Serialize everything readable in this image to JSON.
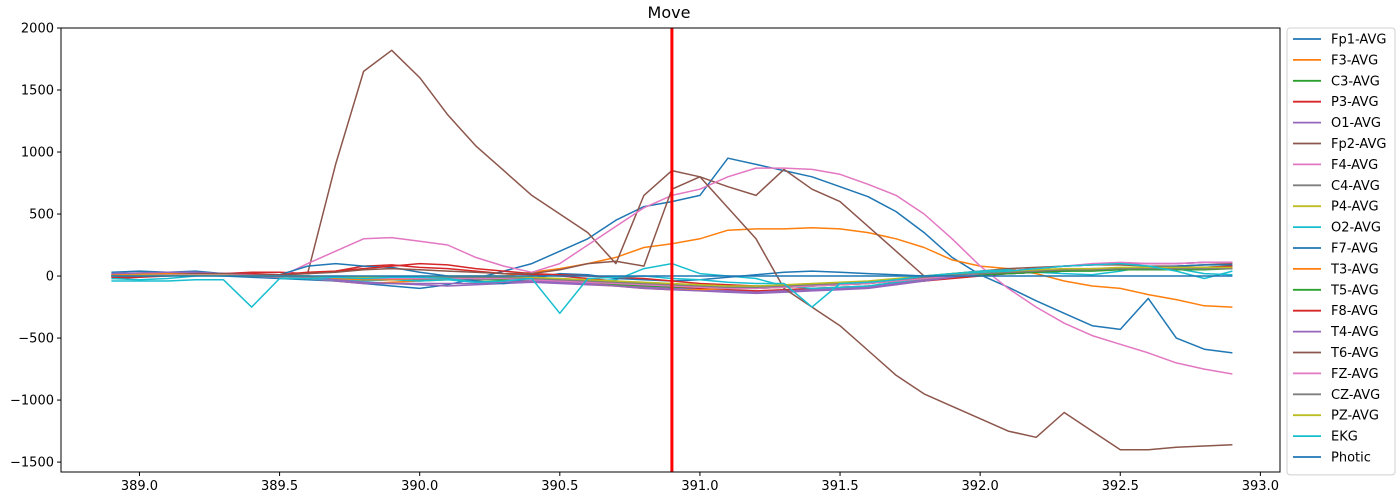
{
  "chart_data": {
    "type": "line",
    "title": "Move",
    "xlabel": "",
    "ylabel": "",
    "xlim": [
      388.72,
      393.07
    ],
    "ylim": [
      -1580,
      2000
    ],
    "x_ticks": [
      389.0,
      389.5,
      390.0,
      390.5,
      391.0,
      391.5,
      392.0,
      392.5,
      393.0
    ],
    "x_tick_labels": [
      "389.0",
      "389.5",
      "390.0",
      "390.5",
      "391.0",
      "391.5",
      "392.0",
      "392.5",
      "393.0"
    ],
    "y_ticks": [
      2000,
      1500,
      1000,
      500,
      0,
      -500,
      -1000,
      -1500
    ],
    "y_tick_labels": [
      "2000",
      "1500",
      "1000",
      "500",
      "0",
      "−500",
      "−1000",
      "−1500"
    ],
    "grid": false,
    "legend_position": "outside-right",
    "x_start": 388.9,
    "x_step": 0.1,
    "event_marker": {
      "x": 390.9,
      "color": "#ff0000"
    },
    "series": [
      {
        "name": "Fp1-AVG",
        "color": "#1f77b4",
        "values": [
          10,
          15,
          10,
          5,
          0,
          -10,
          -20,
          -30,
          -40,
          -60,
          -80,
          -100,
          -70,
          -20,
          40,
          100,
          200,
          300,
          450,
          560,
          600,
          650,
          950,
          900,
          850,
          800,
          720,
          640,
          520,
          350,
          150,
          10,
          -90,
          -200,
          -300,
          -400,
          -430,
          -180,
          -500,
          -590,
          -620
        ]
      },
      {
        "name": "F3-AVG",
        "color": "#ff7f0e",
        "values": [
          10,
          10,
          15,
          15,
          10,
          5,
          0,
          -20,
          -40,
          -60,
          -50,
          -40,
          -30,
          -20,
          0,
          30,
          60,
          100,
          150,
          230,
          260,
          300,
          370,
          380,
          380,
          390,
          380,
          350,
          300,
          230,
          130,
          80,
          60,
          20,
          -40,
          -80,
          -100,
          -150,
          -190,
          -240,
          -250
        ]
      },
      {
        "name": "C3-AVG",
        "color": "#2ca02c",
        "values": [
          0,
          5,
          10,
          10,
          10,
          5,
          0,
          0,
          -20,
          -20,
          -10,
          -20,
          -20,
          -30,
          -30,
          -40,
          -50,
          -60,
          -70,
          -80,
          -90,
          -100,
          -120,
          -130,
          -120,
          -110,
          -100,
          -90,
          -60,
          -40,
          -10,
          10,
          20,
          30,
          40,
          50,
          60,
          60,
          70,
          70,
          80
        ]
      },
      {
        "name": "P3-AVG",
        "color": "#d62728",
        "values": [
          -20,
          -10,
          0,
          10,
          20,
          30,
          30,
          20,
          40,
          80,
          90,
          70,
          60,
          40,
          20,
          10,
          0,
          -20,
          -40,
          -60,
          -80,
          -100,
          -110,
          -120,
          -110,
          -100,
          -90,
          -80,
          -60,
          -40,
          -20,
          0,
          20,
          30,
          40,
          50,
          60,
          60,
          70,
          70,
          70
        ]
      },
      {
        "name": "O1-AVG",
        "color": "#9467bd",
        "values": [
          20,
          20,
          30,
          30,
          20,
          20,
          10,
          -20,
          -40,
          -60,
          -60,
          -70,
          -80,
          -70,
          -60,
          -50,
          -60,
          -70,
          -80,
          -90,
          -100,
          -110,
          -120,
          -130,
          -120,
          -110,
          -100,
          -90,
          -60,
          -30,
          0,
          20,
          40,
          60,
          80,
          90,
          100,
          100,
          100,
          110,
          110
        ]
      },
      {
        "name": "Fp2-AVG",
        "color": "#8c564b",
        "values": [
          0,
          10,
          10,
          20,
          20,
          10,
          10,
          20,
          900,
          1650,
          1820,
          1600,
          1300,
          1050,
          850,
          650,
          500,
          350,
          100,
          650,
          850,
          800,
          720,
          650,
          860,
          700,
          600,
          400,
          200,
          0,
          20,
          40,
          60,
          70,
          80,
          90,
          90,
          80,
          80,
          90,
          100
        ]
      },
      {
        "name": "F4-AVG",
        "color": "#e377c2",
        "values": [
          10,
          20,
          20,
          20,
          10,
          0,
          -10,
          100,
          200,
          300,
          310,
          280,
          250,
          150,
          80,
          30,
          100,
          250,
          400,
          550,
          650,
          700,
          800,
          870,
          870,
          860,
          820,
          740,
          650,
          500,
          300,
          80,
          -100,
          -250,
          -380,
          -480,
          -550,
          -620,
          -700,
          -750,
          -790
        ]
      },
      {
        "name": "C4-AVG",
        "color": "#7f7f7f",
        "values": [
          0,
          0,
          5,
          5,
          5,
          0,
          -5,
          -10,
          -20,
          -20,
          -20,
          -30,
          -30,
          -30,
          -20,
          -20,
          -30,
          -40,
          -50,
          -60,
          -70,
          -80,
          -90,
          -100,
          -90,
          -80,
          -70,
          -60,
          -40,
          -20,
          0,
          10,
          20,
          30,
          40,
          50,
          50,
          50,
          60,
          60,
          60
        ]
      },
      {
        "name": "P4-AVG",
        "color": "#bcbd22",
        "values": [
          0,
          5,
          10,
          10,
          5,
          0,
          0,
          -10,
          -20,
          -30,
          -30,
          -20,
          -20,
          -10,
          -10,
          -20,
          -30,
          -40,
          -50,
          -60,
          -70,
          -80,
          -90,
          -90,
          -80,
          -70,
          -60,
          -50,
          -30,
          -10,
          10,
          20,
          30,
          40,
          50,
          50,
          60,
          60,
          60,
          60,
          70
        ]
      },
      {
        "name": "O2-AVG",
        "color": "#17becf",
        "values": [
          -20,
          -30,
          -20,
          0,
          10,
          0,
          0,
          -20,
          -30,
          -40,
          -30,
          -40,
          -30,
          -50,
          -60,
          -20,
          -20,
          -40,
          -30,
          60,
          100,
          20,
          0,
          -20,
          -80,
          -100,
          -90,
          -80,
          -50,
          -20,
          20,
          40,
          50,
          30,
          20,
          10,
          40,
          80,
          60,
          20,
          10
        ]
      },
      {
        "name": "F7-AVG",
        "color": "#1f77b4",
        "values": [
          30,
          40,
          30,
          40,
          20,
          10,
          10,
          80,
          100,
          80,
          70,
          30,
          0,
          -40,
          -60,
          -20,
          20,
          10,
          -20,
          -30,
          -40,
          -30,
          -10,
          10,
          30,
          40,
          30,
          20,
          10,
          0,
          0,
          10,
          20,
          30,
          40,
          50,
          60,
          70,
          80,
          90,
          90
        ]
      },
      {
        "name": "T3-AVG",
        "color": "#ff7f0e",
        "values": [
          10,
          15,
          20,
          20,
          10,
          5,
          0,
          -10,
          -20,
          -30,
          -30,
          -20,
          -10,
          -10,
          -20,
          -30,
          -40,
          -60,
          -80,
          -100,
          -110,
          -110,
          -100,
          -90,
          -90,
          -80,
          -70,
          -60,
          -40,
          -20,
          0,
          20,
          30,
          40,
          50,
          50,
          50,
          50,
          60,
          60,
          60
        ]
      },
      {
        "name": "T5-AVG",
        "color": "#2ca02c",
        "values": [
          0,
          0,
          5,
          5,
          5,
          0,
          0,
          -10,
          -10,
          -20,
          -20,
          -20,
          -20,
          -20,
          -20,
          -30,
          -40,
          -50,
          -60,
          -70,
          -80,
          -90,
          -100,
          -100,
          -90,
          -80,
          -70,
          -60,
          -40,
          -20,
          0,
          10,
          20,
          30,
          40,
          40,
          50,
          50,
          50,
          50,
          60
        ]
      },
      {
        "name": "F8-AVG",
        "color": "#d62728",
        "values": [
          -10,
          0,
          10,
          10,
          20,
          20,
          10,
          30,
          40,
          60,
          80,
          100,
          90,
          60,
          40,
          20,
          10,
          0,
          -10,
          -20,
          -40,
          -60,
          -70,
          -80,
          -80,
          -70,
          -60,
          -50,
          -30,
          -10,
          10,
          20,
          30,
          40,
          50,
          60,
          60,
          70,
          70,
          70,
          80
        ]
      },
      {
        "name": "T4-AVG",
        "color": "#9467bd",
        "values": [
          20,
          25,
          30,
          30,
          20,
          10,
          10,
          -10,
          -30,
          -50,
          -60,
          -60,
          -60,
          -60,
          -50,
          -40,
          -50,
          -60,
          -80,
          -100,
          -110,
          -120,
          -130,
          -140,
          -130,
          -120,
          -110,
          -100,
          -70,
          -40,
          -10,
          20,
          40,
          60,
          80,
          90,
          100,
          100,
          100,
          110,
          110
        ]
      },
      {
        "name": "T6-AVG",
        "color": "#8c564b",
        "values": [
          0,
          5,
          10,
          20,
          20,
          10,
          10,
          20,
          30,
          50,
          60,
          50,
          40,
          30,
          20,
          20,
          50,
          100,
          120,
          80,
          700,
          800,
          550,
          300,
          -100,
          -250,
          -400,
          -600,
          -800,
          -950,
          -1050,
          -1150,
          -1250,
          -1300,
          -1100,
          -1250,
          -1400,
          -1400,
          -1380,
          -1370,
          -1360
        ]
      },
      {
        "name": "FZ-AVG",
        "color": "#e377c2",
        "values": [
          0,
          5,
          10,
          10,
          10,
          5,
          0,
          -10,
          -10,
          -20,
          -20,
          -20,
          -20,
          -20,
          -20,
          -30,
          -40,
          -50,
          -60,
          -70,
          -80,
          -90,
          -100,
          -100,
          -90,
          -80,
          -70,
          -60,
          -40,
          -20,
          0,
          20,
          40,
          60,
          80,
          100,
          110,
          100,
          100,
          110,
          110
        ]
      },
      {
        "name": "CZ-AVG",
        "color": "#7f7f7f",
        "values": [
          0,
          0,
          5,
          5,
          5,
          0,
          0,
          -5,
          -10,
          -10,
          -10,
          -10,
          -10,
          -10,
          -10,
          -20,
          -30,
          -40,
          -50,
          -60,
          -70,
          -80,
          -90,
          -90,
          -80,
          -70,
          -60,
          -50,
          -30,
          -10,
          10,
          20,
          30,
          40,
          50,
          50,
          60,
          60,
          60,
          60,
          60
        ]
      },
      {
        "name": "PZ-AVG",
        "color": "#bcbd22",
        "values": [
          0,
          5,
          5,
          5,
          5,
          0,
          0,
          0,
          -10,
          -10,
          -10,
          -10,
          0,
          0,
          0,
          -10,
          -20,
          -30,
          -40,
          -50,
          -60,
          -70,
          -80,
          -80,
          -70,
          -60,
          -50,
          -40,
          -20,
          0,
          20,
          30,
          40,
          50,
          60,
          60,
          70,
          70,
          70,
          70,
          70
        ]
      },
      {
        "name": "EKG",
        "color": "#17becf",
        "values": [
          -40,
          -40,
          -40,
          -30,
          -30,
          -250,
          -20,
          -20,
          -10,
          -20,
          -10,
          -10,
          -20,
          -50,
          -40,
          -20,
          -300,
          -20,
          -10,
          0,
          -20,
          -30,
          -50,
          -60,
          -60,
          -250,
          -60,
          -50,
          -30,
          0,
          20,
          30,
          40,
          60,
          80,
          90,
          100,
          80,
          40,
          -20,
          40
        ]
      },
      {
        "name": "Photic",
        "color": "#1f77b4",
        "values": [
          0,
          0,
          0,
          0,
          0,
          0,
          0,
          0,
          0,
          0,
          0,
          0,
          0,
          0,
          0,
          0,
          0,
          0,
          0,
          0,
          0,
          0,
          0,
          0,
          0,
          0,
          0,
          0,
          0,
          0,
          0,
          0,
          0,
          0,
          0,
          0,
          0,
          0,
          0,
          0,
          0
        ]
      }
    ]
  }
}
